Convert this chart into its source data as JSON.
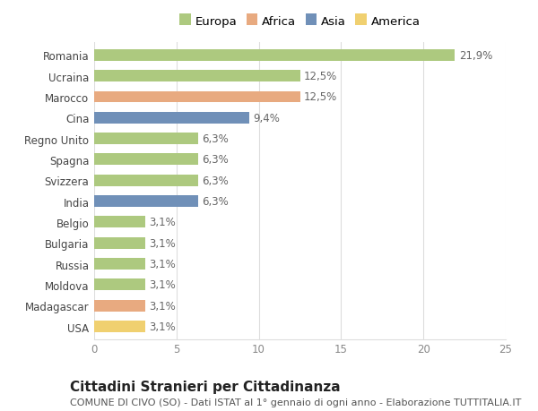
{
  "countries": [
    "Romania",
    "Ucraina",
    "Marocco",
    "Cina",
    "Regno Unito",
    "Spagna",
    "Svizzera",
    "India",
    "Belgio",
    "Bulgaria",
    "Russia",
    "Moldova",
    "Madagascar",
    "USA"
  ],
  "values": [
    21.9,
    12.5,
    12.5,
    9.4,
    6.3,
    6.3,
    6.3,
    6.3,
    3.1,
    3.1,
    3.1,
    3.1,
    3.1,
    3.1
  ],
  "labels": [
    "21,9%",
    "12,5%",
    "12,5%",
    "9,4%",
    "6,3%",
    "6,3%",
    "6,3%",
    "6,3%",
    "3,1%",
    "3,1%",
    "3,1%",
    "3,1%",
    "3,1%",
    "3,1%"
  ],
  "continents": [
    "Europa",
    "Europa",
    "Africa",
    "Asia",
    "Europa",
    "Europa",
    "Europa",
    "Asia",
    "Europa",
    "Europa",
    "Europa",
    "Europa",
    "Africa",
    "America"
  ],
  "colors": {
    "Europa": "#adc97f",
    "Africa": "#e8aa80",
    "Asia": "#7090b8",
    "America": "#f0d070"
  },
  "xlim": [
    0,
    25
  ],
  "xticks": [
    0,
    5,
    10,
    15,
    20,
    25
  ],
  "title": "Cittadini Stranieri per Cittadinanza",
  "subtitle": "COMUNE DI CIVO (SO) - Dati ISTAT al 1° gennaio di ogni anno - Elaborazione TUTTITALIA.IT",
  "background_color": "#ffffff",
  "grid_color": "#dddddd",
  "bar_height": 0.55,
  "title_fontsize": 11,
  "subtitle_fontsize": 8,
  "label_fontsize": 8.5,
  "tick_fontsize": 8.5,
  "legend_fontsize": 9.5
}
